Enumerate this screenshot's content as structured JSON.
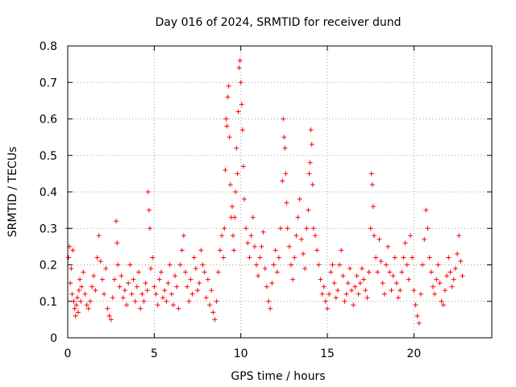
{
  "chart_data": {
    "type": "scatter",
    "title": "Day 016 of 2024, SRMTID for receiver dund",
    "xlabel": "GPS time / hours",
    "ylabel": "SRMTID / TECUs",
    "xlim": [
      0,
      24.5
    ],
    "ylim": [
      0,
      0.8
    ],
    "xticks": [
      0,
      5,
      10,
      15,
      20
    ],
    "yticks": [
      0,
      0.1,
      0.2,
      0.3,
      0.4,
      0.5,
      0.6,
      0.7,
      0.8
    ],
    "grid": true,
    "marker": "+",
    "series": [
      {
        "name": "SRMTID",
        "color": "#ff0000",
        "x": [
          0.0,
          0.05,
          0.1,
          0.15,
          0.2,
          0.25,
          0.3,
          0.35,
          0.4,
          0.45,
          0.5,
          0.55,
          0.6,
          0.65,
          0.7,
          0.75,
          0.8,
          0.9,
          1.0,
          1.1,
          1.2,
          1.3,
          1.4,
          1.5,
          1.6,
          1.7,
          1.8,
          1.9,
          2.0,
          2.1,
          2.2,
          2.3,
          2.4,
          2.5,
          2.6,
          2.7,
          2.8,
          2.85,
          2.9,
          3.0,
          3.1,
          3.2,
          3.3,
          3.4,
          3.5,
          3.6,
          3.7,
          3.8,
          3.9,
          4.0,
          4.1,
          4.2,
          4.3,
          4.4,
          4.5,
          4.6,
          4.65,
          4.7,
          4.75,
          4.8,
          4.9,
          5.0,
          5.1,
          5.2,
          5.3,
          5.4,
          5.5,
          5.6,
          5.7,
          5.8,
          5.9,
          6.0,
          6.1,
          6.2,
          6.3,
          6.4,
          6.5,
          6.6,
          6.7,
          6.8,
          6.9,
          7.0,
          7.1,
          7.2,
          7.3,
          7.4,
          7.5,
          7.6,
          7.7,
          7.8,
          7.9,
          8.0,
          8.1,
          8.2,
          8.3,
          8.4,
          8.5,
          8.6,
          8.7,
          8.8,
          8.9,
          9.0,
          9.05,
          9.1,
          9.15,
          9.2,
          9.25,
          9.3,
          9.35,
          9.4,
          9.45,
          9.5,
          9.55,
          9.6,
          9.65,
          9.7,
          9.75,
          9.8,
          9.85,
          9.9,
          9.95,
          10.0,
          10.05,
          10.1,
          10.15,
          10.2,
          10.3,
          10.4,
          10.5,
          10.6,
          10.7,
          10.8,
          10.9,
          11.0,
          11.1,
          11.2,
          11.3,
          11.4,
          11.5,
          11.6,
          11.7,
          11.8,
          11.9,
          12.0,
          12.1,
          12.2,
          12.3,
          12.4,
          12.45,
          12.5,
          12.55,
          12.6,
          12.65,
          12.7,
          12.8,
          12.9,
          13.0,
          13.1,
          13.2,
          13.3,
          13.4,
          13.5,
          13.6,
          13.7,
          13.8,
          13.9,
          13.95,
          14.0,
          14.05,
          14.1,
          14.15,
          14.2,
          14.3,
          14.4,
          14.5,
          14.6,
          14.7,
          14.8,
          14.9,
          15.0,
          15.1,
          15.2,
          15.3,
          15.4,
          15.5,
          15.6,
          15.7,
          15.8,
          15.9,
          16.0,
          16.1,
          16.2,
          16.3,
          16.4,
          16.5,
          16.6,
          16.7,
          16.8,
          16.9,
          17.0,
          17.1,
          17.2,
          17.3,
          17.4,
          17.5,
          17.55,
          17.6,
          17.65,
          17.7,
          17.8,
          17.9,
          18.0,
          18.1,
          18.2,
          18.3,
          18.4,
          18.5,
          18.6,
          18.7,
          18.8,
          18.9,
          19.0,
          19.1,
          19.2,
          19.3,
          19.4,
          19.5,
          19.6,
          19.7,
          19.8,
          19.9,
          20.0,
          20.1,
          20.2,
          20.3,
          20.4,
          20.5,
          20.6,
          20.7,
          20.8,
          20.9,
          21.0,
          21.1,
          21.2,
          21.3,
          21.4,
          21.5,
          21.6,
          21.7,
          21.8,
          21.9,
          22.0,
          22.1,
          22.2,
          22.3,
          22.4,
          22.5,
          22.6,
          22.7,
          22.8
        ],
        "y": [
          0.3,
          0.22,
          0.25,
          0.15,
          0.19,
          0.12,
          0.24,
          0.1,
          0.08,
          0.06,
          0.09,
          0.11,
          0.07,
          0.13,
          0.16,
          0.1,
          0.14,
          0.18,
          0.12,
          0.09,
          0.08,
          0.1,
          0.14,
          0.17,
          0.13,
          0.22,
          0.28,
          0.21,
          0.16,
          0.12,
          0.19,
          0.08,
          0.06,
          0.05,
          0.11,
          0.16,
          0.32,
          0.26,
          0.2,
          0.14,
          0.17,
          0.11,
          0.13,
          0.09,
          0.15,
          0.2,
          0.12,
          0.16,
          0.1,
          0.14,
          0.18,
          0.08,
          0.12,
          0.1,
          0.15,
          0.13,
          0.4,
          0.35,
          0.3,
          0.19,
          0.22,
          0.14,
          0.12,
          0.09,
          0.16,
          0.18,
          0.11,
          0.13,
          0.1,
          0.15,
          0.2,
          0.12,
          0.09,
          0.17,
          0.14,
          0.08,
          0.2,
          0.24,
          0.28,
          0.18,
          0.14,
          0.1,
          0.16,
          0.12,
          0.22,
          0.19,
          0.13,
          0.15,
          0.24,
          0.2,
          0.18,
          0.11,
          0.16,
          0.09,
          0.13,
          0.07,
          0.05,
          0.1,
          0.18,
          0.24,
          0.28,
          0.22,
          0.3,
          0.46,
          0.6,
          0.58,
          0.66,
          0.69,
          0.55,
          0.42,
          0.33,
          0.36,
          0.28,
          0.24,
          0.33,
          0.4,
          0.52,
          0.45,
          0.62,
          0.74,
          0.76,
          0.7,
          0.64,
          0.57,
          0.47,
          0.38,
          0.3,
          0.26,
          0.22,
          0.28,
          0.33,
          0.25,
          0.2,
          0.17,
          0.22,
          0.25,
          0.29,
          0.19,
          0.14,
          0.1,
          0.08,
          0.15,
          0.2,
          0.24,
          0.18,
          0.22,
          0.3,
          0.43,
          0.6,
          0.55,
          0.52,
          0.45,
          0.37,
          0.3,
          0.25,
          0.2,
          0.16,
          0.22,
          0.28,
          0.33,
          0.38,
          0.27,
          0.23,
          0.19,
          0.3,
          0.35,
          0.45,
          0.48,
          0.57,
          0.53,
          0.42,
          0.3,
          0.28,
          0.24,
          0.2,
          0.16,
          0.12,
          0.14,
          0.1,
          0.08,
          0.12,
          0.18,
          0.2,
          0.15,
          0.11,
          0.13,
          0.2,
          0.24,
          0.17,
          0.1,
          0.12,
          0.15,
          0.19,
          0.13,
          0.09,
          0.14,
          0.17,
          0.12,
          0.15,
          0.19,
          0.16,
          0.13,
          0.11,
          0.18,
          0.3,
          0.45,
          0.42,
          0.36,
          0.28,
          0.22,
          0.18,
          0.27,
          0.21,
          0.15,
          0.12,
          0.2,
          0.25,
          0.18,
          0.13,
          0.17,
          0.22,
          0.15,
          0.11,
          0.13,
          0.18,
          0.22,
          0.26,
          0.2,
          0.16,
          0.28,
          0.22,
          0.13,
          0.09,
          0.06,
          0.04,
          0.12,
          0.2,
          0.27,
          0.35,
          0.3,
          0.22,
          0.18,
          0.14,
          0.12,
          0.16,
          0.2,
          0.15,
          0.1,
          0.09,
          0.13,
          0.17,
          0.22,
          0.18,
          0.14,
          0.16,
          0.19,
          0.23,
          0.28,
          0.21,
          0.17
        ]
      }
    ]
  }
}
